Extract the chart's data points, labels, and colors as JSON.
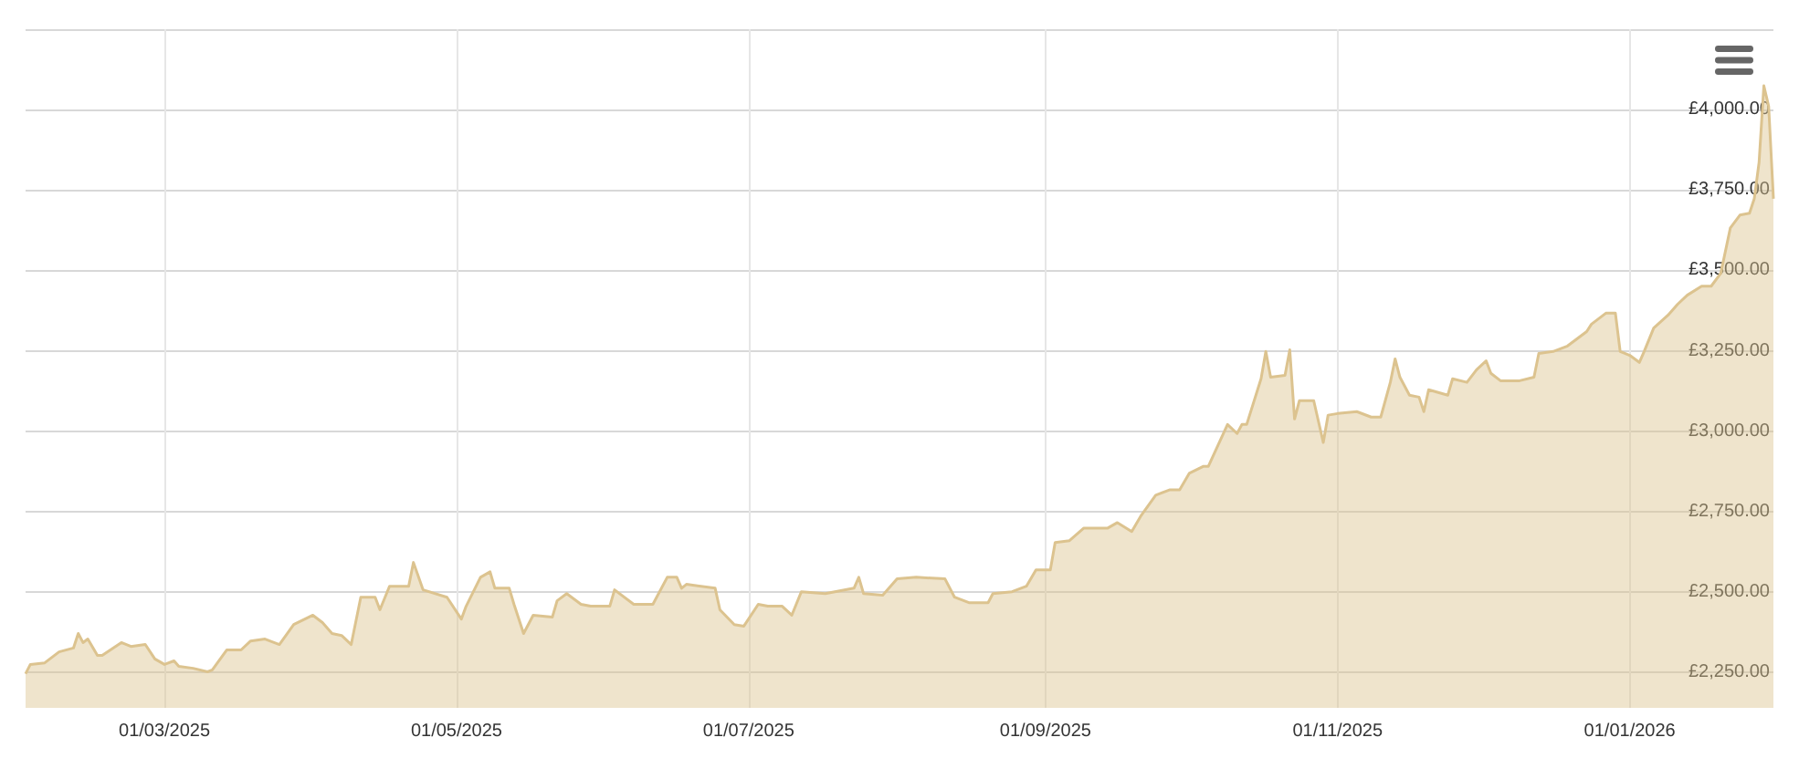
{
  "chart_data": {
    "type": "area",
    "grid": true,
    "marker": "none",
    "line_style": "solid",
    "xlim": [
      "2025-01-31",
      "2026-01-31"
    ],
    "xticks": [
      {
        "value": "2025-03-01",
        "label": "01/03/2025"
      },
      {
        "value": "2025-05-01",
        "label": "01/05/2025"
      },
      {
        "value": "2025-07-01",
        "label": "01/07/2025"
      },
      {
        "value": "2025-09-01",
        "label": "01/09/2025"
      },
      {
        "value": "2025-11-01",
        "label": "01/11/2025"
      },
      {
        "value": "2026-01-01",
        "label": "01/01/2026"
      }
    ],
    "ylim": [
      2140,
      4250
    ],
    "yticks": [
      {
        "value": 2250,
        "label": "£2,250.00"
      },
      {
        "value": 2500,
        "label": "£2,500.00"
      },
      {
        "value": 2750,
        "label": "£2,750.00"
      },
      {
        "value": 3000,
        "label": "£3,000.00"
      },
      {
        "value": 3250,
        "label": "£3,250.00"
      },
      {
        "value": 3500,
        "label": "£3,500.00"
      },
      {
        "value": 3750,
        "label": "£3,750.00"
      },
      {
        "value": 4000,
        "label": "£4,000.00"
      },
      {
        "value": 4250,
        "label": null
      }
    ],
    "x": [
      "2025-01-31",
      "2025-02-01",
      "2025-02-04",
      "2025-02-07",
      "2025-02-10",
      "2025-02-11",
      "2025-02-12",
      "2025-02-13",
      "2025-02-15",
      "2025-02-16",
      "2025-02-20",
      "2025-02-22",
      "2025-02-25",
      "2025-02-27",
      "2025-03-01",
      "2025-03-03",
      "2025-03-04",
      "2025-03-07",
      "2025-03-10",
      "2025-03-11",
      "2025-03-14",
      "2025-03-17",
      "2025-03-19",
      "2025-03-22",
      "2025-03-25",
      "2025-03-28",
      "2025-04-01",
      "2025-04-03",
      "2025-04-05",
      "2025-04-07",
      "2025-04-09",
      "2025-04-11",
      "2025-04-14",
      "2025-04-15",
      "2025-04-17",
      "2025-04-21",
      "2025-04-22",
      "2025-04-24",
      "2025-04-29",
      "2025-05-02",
      "2025-05-03",
      "2025-05-06",
      "2025-05-08",
      "2025-05-09",
      "2025-05-12",
      "2025-05-13",
      "2025-05-15",
      "2025-05-17",
      "2025-05-21",
      "2025-05-22",
      "2025-05-24",
      "2025-05-27",
      "2025-05-29",
      "2025-06-02",
      "2025-06-03",
      "2025-06-07",
      "2025-06-11",
      "2025-06-14",
      "2025-06-16",
      "2025-06-17",
      "2025-06-18",
      "2025-06-24",
      "2025-06-25",
      "2025-06-28",
      "2025-06-30",
      "2025-07-03",
      "2025-07-05",
      "2025-07-08",
      "2025-07-10",
      "2025-07-12",
      "2025-07-17",
      "2025-07-23",
      "2025-07-24",
      "2025-07-25",
      "2025-07-29",
      "2025-08-01",
      "2025-08-05",
      "2025-08-11",
      "2025-08-13",
      "2025-08-16",
      "2025-08-20",
      "2025-08-21",
      "2025-08-25",
      "2025-08-28",
      "2025-08-30",
      "2025-09-02",
      "2025-09-03",
      "2025-09-06",
      "2025-09-09",
      "2025-09-14",
      "2025-09-16",
      "2025-09-19",
      "2025-09-21",
      "2025-09-24",
      "2025-09-27",
      "2025-09-29",
      "2025-10-01",
      "2025-10-04",
      "2025-10-05",
      "2025-10-09",
      "2025-10-11",
      "2025-10-12",
      "2025-10-13",
      "2025-10-16",
      "2025-10-17",
      "2025-10-18",
      "2025-10-21",
      "2025-10-22",
      "2025-10-23",
      "2025-10-24",
      "2025-10-27",
      "2025-10-29",
      "2025-10-30",
      "2025-11-01",
      "2025-11-05",
      "2025-11-08",
      "2025-11-10",
      "2025-11-12",
      "2025-11-13",
      "2025-11-14",
      "2025-11-16",
      "2025-11-18",
      "2025-11-19",
      "2025-11-20",
      "2025-11-24",
      "2025-11-25",
      "2025-11-28",
      "2025-11-30",
      "2025-12-02",
      "2025-12-03",
      "2025-12-05",
      "2025-12-09",
      "2025-12-12",
      "2025-12-13",
      "2025-12-16",
      "2025-12-19",
      "2025-12-23",
      "2025-12-24",
      "2025-12-27",
      "2025-12-29",
      "2025-12-30",
      "2026-01-01",
      "2026-01-03",
      "2026-01-04",
      "2026-01-06",
      "2026-01-09",
      "2026-01-11",
      "2026-01-13",
      "2026-01-16",
      "2026-01-18",
      "2026-01-20",
      "2026-01-22",
      "2026-01-24",
      "2026-01-26",
      "2026-01-27",
      "2026-01-28",
      "2026-01-29",
      "2026-01-30",
      "2026-01-31"
    ],
    "series": [
      {
        "color": "#dcc38f",
        "values": [
          2246,
          2275,
          2280,
          2314,
          2326,
          2371,
          2343,
          2354,
          2303,
          2303,
          2343,
          2331,
          2337,
          2292,
          2275,
          2286,
          2269,
          2263,
          2252,
          2258,
          2320,
          2320,
          2348,
          2354,
          2337,
          2399,
          2428,
          2405,
          2371,
          2365,
          2337,
          2484,
          2484,
          2445,
          2518,
          2518,
          2592,
          2507,
          2484,
          2416,
          2456,
          2546,
          2563,
          2512,
          2512,
          2462,
          2371,
          2428,
          2422,
          2473,
          2495,
          2462,
          2456,
          2456,
          2507,
          2462,
          2462,
          2546,
          2546,
          2512,
          2524,
          2512,
          2445,
          2399,
          2394,
          2462,
          2456,
          2456,
          2428,
          2501,
          2495,
          2512,
          2546,
          2495,
          2490,
          2541,
          2546,
          2541,
          2484,
          2467,
          2467,
          2495,
          2501,
          2518,
          2569,
          2569,
          2654,
          2660,
          2699,
          2699,
          2716,
          2688,
          2739,
          2801,
          2818,
          2818,
          2869,
          2891,
          2891,
          3021,
          2993,
          3021,
          3021,
          3163,
          3248,
          3168,
          3174,
          3253,
          3038,
          3095,
          3095,
          2965,
          3050,
          3055,
          3061,
          3044,
          3044,
          3152,
          3225,
          3168,
          3112,
          3106,
          3061,
          3129,
          3112,
          3163,
          3152,
          3191,
          3219,
          3180,
          3157,
          3157,
          3168,
          3242,
          3248,
          3265,
          3310,
          3333,
          3367,
          3367,
          3248,
          3236,
          3214,
          3248,
          3321,
          3361,
          3395,
          3423,
          3451,
          3451,
          3491,
          3632,
          3672,
          3678,
          3723,
          3836,
          4074,
          4011,
          3723
        ]
      }
    ]
  }
}
